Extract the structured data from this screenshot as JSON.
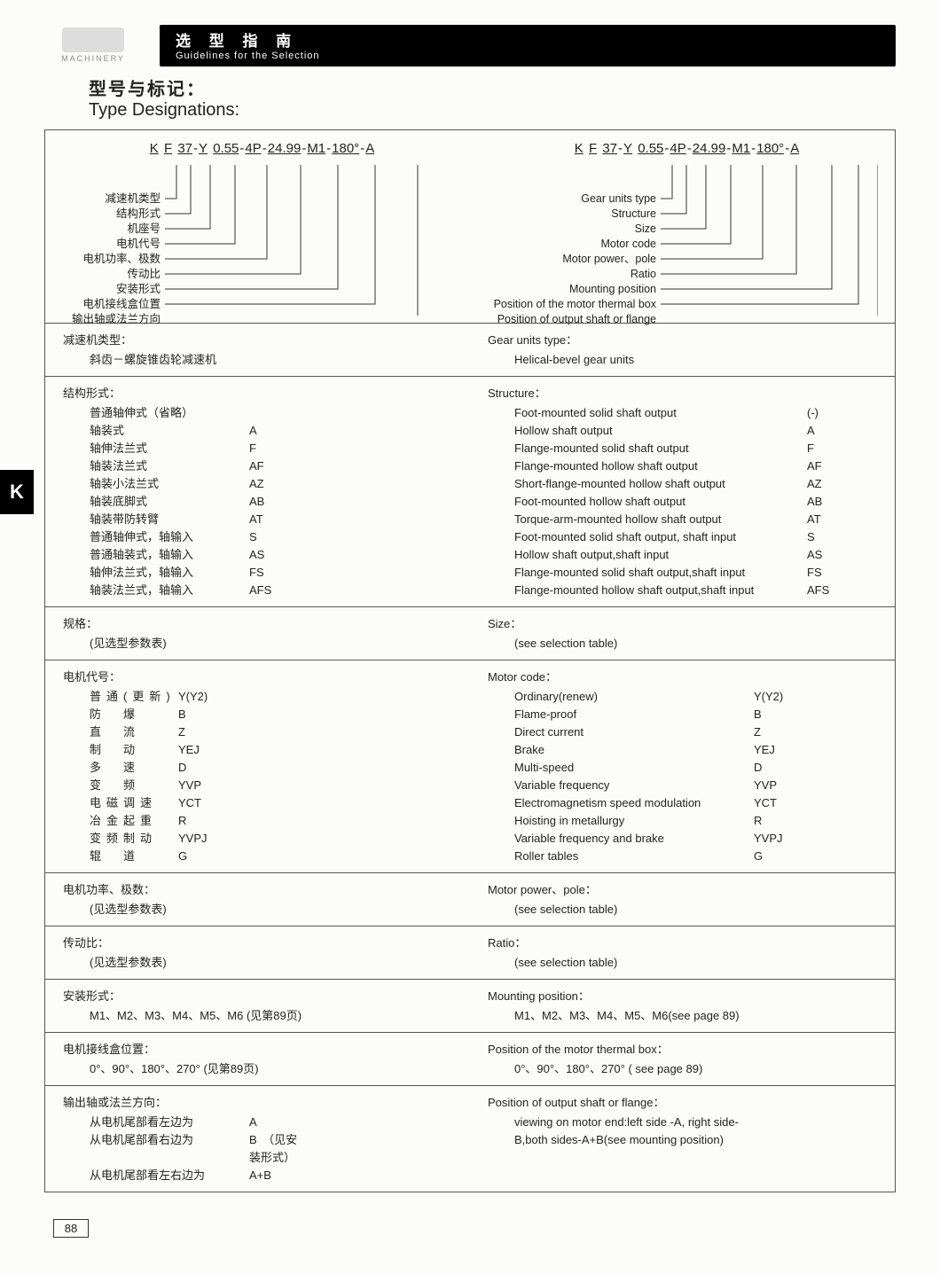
{
  "header": {
    "logo_caption": "MACHINERY",
    "bar_cn": "选 型 指 南",
    "bar_en": "Guidelines for the Selection"
  },
  "title": {
    "cn": "型号与标记：",
    "en": "Type Designations:"
  },
  "designation_code": "K F 37-Y 0.55-4P-24.99-M1-180°-A",
  "labels_cn": [
    "减速机类型",
    "结构形式",
    "机座号",
    "电机代号",
    "电机功率、极数",
    "传动比",
    "安装形式",
    "电机接线盒位置",
    "输出轴或法兰方向"
  ],
  "labels_en": [
    "Gear units type",
    "Structure",
    "Size",
    "Motor code",
    "Motor power、pole",
    "Ratio",
    "Mounting position",
    "Position of the motor thermal box",
    "Position of output shaft or flange"
  ],
  "sections": {
    "gear_type": {
      "cn_t": "减速机类型：",
      "cn_v": "斜齿－螺旋锥齿轮减速机",
      "en_t": "Gear units type：",
      "en_v": "Helical-bevel gear units"
    },
    "structure": {
      "cn_t": "结构形式：",
      "cn_rows": [
        [
          "普通轴伸式（省略）",
          ""
        ],
        [
          "轴装式",
          "A"
        ],
        [
          "轴伸法兰式",
          "F"
        ],
        [
          "轴装法兰式",
          "AF"
        ],
        [
          "轴装小法兰式",
          "AZ"
        ],
        [
          "轴装底脚式",
          "AB"
        ],
        [
          "轴装带防转臂",
          "AT"
        ],
        [
          "普通轴伸式，轴输入",
          "S"
        ],
        [
          "普通轴装式，轴输入",
          "AS"
        ],
        [
          "轴伸法兰式，轴输入",
          "FS"
        ],
        [
          "轴装法兰式，轴输入",
          "AFS"
        ]
      ],
      "en_t": "Structure：",
      "en_rows": [
        [
          "Foot-mounted solid shaft output",
          "(-)"
        ],
        [
          "Hollow shaft output",
          "A"
        ],
        [
          "Flange-mounted solid shaft output",
          "F"
        ],
        [
          "Flange-mounted hollow shaft output",
          "AF"
        ],
        [
          "Short-flange-mounted hollow shaft output",
          "AZ"
        ],
        [
          "Foot-mounted hollow shaft output",
          "AB"
        ],
        [
          "Torque-arm-mounted hollow shaft output",
          "AT"
        ],
        [
          "Foot-mounted solid shaft output, shaft input",
          "S"
        ],
        [
          "Hollow shaft output,shaft input",
          "AS"
        ],
        [
          "Flange-mounted solid shaft output,shaft input",
          "FS"
        ],
        [
          "Flange-mounted hollow shaft output,shaft input",
          "AFS"
        ]
      ]
    },
    "size": {
      "cn_t": "规格：",
      "cn_v": "(见选型参数表)",
      "en_t": "Size：",
      "en_v": "(see selection table)"
    },
    "motor_code": {
      "cn_t": "电机代号：",
      "cn_rows": [
        [
          "普通(更新)",
          "Y(Y2)"
        ],
        [
          "防　爆",
          "B"
        ],
        [
          "直　流",
          "Z"
        ],
        [
          "制　动",
          "YEJ"
        ],
        [
          "多　速",
          "D"
        ],
        [
          "变　频",
          "YVP"
        ],
        [
          "电磁调速",
          "YCT"
        ],
        [
          "冶金起重",
          "R"
        ],
        [
          "变频制动",
          "YVPJ"
        ],
        [
          "辊　道",
          "G"
        ]
      ],
      "en_t": "Motor code：",
      "en_rows": [
        [
          "Ordinary(renew)",
          "Y(Y2)"
        ],
        [
          "Flame-proof",
          "B"
        ],
        [
          "Direct current",
          "Z"
        ],
        [
          "Brake",
          "YEJ"
        ],
        [
          "Multi-speed",
          "D"
        ],
        [
          "Variable frequency",
          "YVP"
        ],
        [
          "Electromagnetism speed modulation",
          "YCT"
        ],
        [
          "Hoisting in metallurgy",
          "R"
        ],
        [
          "Variable frequency and brake",
          "YVPJ"
        ],
        [
          "Roller tables",
          "G"
        ]
      ]
    },
    "power": {
      "cn_t": "电机功率、极数：",
      "cn_v": "(见选型参数表)",
      "en_t": "Motor power、pole：",
      "en_v": "(see selection table)"
    },
    "ratio": {
      "cn_t": "传动比：",
      "cn_v": "(见选型参数表)",
      "en_t": "Ratio：",
      "en_v": "(see selection table)"
    },
    "mount": {
      "cn_t": "安装形式：",
      "cn_v": "M1、M2、M3、M4、M5、M6 (见第89页)",
      "en_t": "Mounting position：",
      "en_v": "M1、M2、M3、M4、M5、M6(see page 89)"
    },
    "box": {
      "cn_t": "电机接线盒位置：",
      "cn_v": "0°、90°、180°、270° (见第89页)",
      "en_t": "Position of the motor thermal box：",
      "en_v": "0°、90°、180°、270° ( see page 89)"
    },
    "output": {
      "cn_t": "输出轴或法兰方向：",
      "cn_rows": [
        [
          "从电机尾部看左边为",
          "A"
        ],
        [
          "从电机尾部看右边为",
          "B　（见安装形式）"
        ],
        [
          "从电机尾部看左右边为",
          "A+B"
        ]
      ],
      "en_t": "Position of output shaft or flange：",
      "en_v": "viewing on motor end:left side -A, right side-B,both sides-A+B(see mounting position)"
    }
  },
  "side_tab": "K",
  "page_number": "88"
}
